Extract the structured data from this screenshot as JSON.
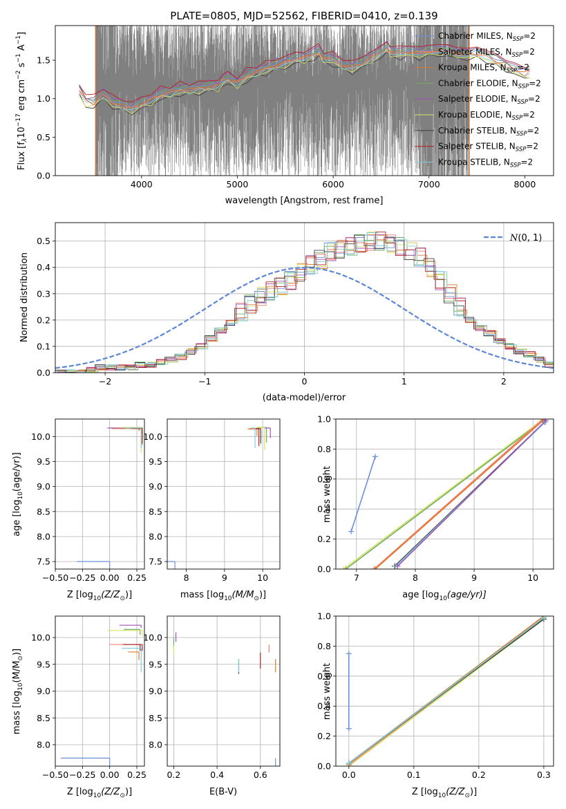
{
  "figure": {
    "title": "PLATE=0805, MJD=52562, FIBERID=0410, z=0.139"
  },
  "colors": {
    "chabrier_miles": "#6a8fdb",
    "salpeter_miles": "#f28070",
    "kroupa_miles": "#e0782e",
    "chabrier_elodie": "#6fae63",
    "salpeter_elodie": "#a050b8",
    "kroupa_elodie": "#d8e060",
    "chabrier_stelib": "#404040",
    "salpeter_stelib": "#b22222",
    "kroupa_stelib": "#7fcfd6",
    "data": "#808080",
    "normal": "#5b86d6"
  },
  "legend_entries": [
    {
      "prefix": "Chabrier MILES, N",
      "sub": "SSP",
      "suffix": "=2",
      "color_key": "chabrier_miles"
    },
    {
      "prefix": "Salpeter MILES, N",
      "sub": "SSP",
      "suffix": "=2",
      "color_key": "salpeter_miles"
    },
    {
      "prefix": "Kroupa MILES, N",
      "sub": "SSP",
      "suffix": "=2",
      "color_key": "kroupa_miles"
    },
    {
      "prefix": "Chabrier ELODIE, N",
      "sub": "SSP",
      "suffix": "=2",
      "color_key": "chabrier_elodie"
    },
    {
      "prefix": "Salpeter ELODIE, N",
      "sub": "SSP",
      "suffix": "=2",
      "color_key": "salpeter_elodie"
    },
    {
      "prefix": "Kroupa ELODIE, N",
      "sub": "SSP",
      "suffix": "=2",
      "color_key": "kroupa_elodie"
    },
    {
      "prefix": "Chabrier STELIB, N",
      "sub": "SSP",
      "suffix": "=2",
      "color_key": "chabrier_stelib"
    },
    {
      "prefix": "Salpeter STELIB, N",
      "sub": "SSP",
      "suffix": "=2",
      "color_key": "salpeter_stelib"
    },
    {
      "prefix": "Kroupa STELIB, N",
      "sub": "SSP",
      "suffix": "=2",
      "color_key": "kroupa_stelib"
    }
  ],
  "chart_data": [
    {
      "id": "spectrum",
      "type": "line",
      "xlabel": "wavelength [Angstrom, rest frame]",
      "ylabel_parts": {
        "a": "Flux [f",
        "b": "λ",
        "c": "10",
        "d": "−17",
        "e": " erg cm",
        "f": "−2",
        "g": " s",
        "h": "−1",
        "i": " A",
        "j": "−1",
        "k": "]"
      },
      "xlim": [
        3100,
        8300
      ],
      "ylim": [
        0,
        1.95
      ],
      "xticks": [
        4000,
        5000,
        6000,
        7000,
        8000
      ],
      "yticks": [
        0.0,
        0.5,
        1.0,
        1.5
      ],
      "xtick_labels": [
        "4000",
        "5000",
        "6000",
        "7000",
        "8000"
      ],
      "ytick_labels": [
        "0.0",
        "0.5",
        "1.0",
        "1.5"
      ],
      "data_range": [
        3520,
        7420
      ],
      "model_range": [
        3350,
        8050
      ],
      "model_points": {
        "x": [
          3350,
          3420,
          3500,
          3600,
          3700,
          3800,
          3900,
          4000,
          4100,
          4200,
          4300,
          4400,
          4500,
          4600,
          4700,
          4800,
          4850,
          4900,
          5000,
          5100,
          5200,
          5300,
          5400,
          5500,
          5600,
          5700,
          5800,
          5850,
          5900,
          6000,
          6100,
          6200,
          6300,
          6400,
          6500,
          6560,
          6600,
          6700,
          6800,
          6900,
          7000,
          7100,
          7200,
          7300,
          7400,
          7500,
          7600,
          7700,
          7800,
          7900,
          8000,
          8050
        ],
        "y": [
          1.12,
          0.98,
          0.95,
          1.08,
          0.95,
          0.92,
          0.88,
          0.94,
          1.0,
          1.06,
          1.1,
          1.12,
          1.13,
          1.14,
          1.16,
          1.18,
          1.24,
          1.26,
          1.22,
          1.3,
          1.36,
          1.4,
          1.44,
          1.48,
          1.52,
          1.55,
          1.58,
          1.62,
          1.54,
          1.52,
          1.44,
          1.42,
          1.46,
          1.55,
          1.6,
          1.66,
          1.62,
          1.6,
          1.62,
          1.6,
          1.62,
          1.64,
          1.62,
          1.6,
          1.58,
          1.6,
          1.56,
          1.5,
          1.44,
          1.38,
          1.34,
          1.36
        ]
      }
    },
    {
      "id": "residuals",
      "type": "histogram",
      "xlabel": "(data-model)/error",
      "ylabel": "Normed distribution",
      "xlim": [
        -2.5,
        2.5
      ],
      "ylim": [
        0,
        0.57
      ],
      "xticks": [
        -2,
        -1,
        0,
        1,
        2
      ],
      "yticks": [
        0.0,
        0.1,
        0.2,
        0.3,
        0.4,
        0.5
      ],
      "xtick_labels": [
        "−2",
        "−1",
        "0",
        "1",
        "2"
      ],
      "ytick_labels": [
        "0.0",
        "0.1",
        "0.2",
        "0.3",
        "0.4",
        "0.5"
      ],
      "legend_label_script": "N",
      "legend_label_rest": "(0, 1)",
      "bin_start": -2.5,
      "bin_width": 0.1,
      "hist_values": [
        0.0,
        0.0,
        0.0,
        0.01,
        0.02,
        0.02,
        0.02,
        0.02,
        0.03,
        0.03,
        0.04,
        0.05,
        0.06,
        0.08,
        0.1,
        0.13,
        0.16,
        0.19,
        0.23,
        0.26,
        0.29,
        0.31,
        0.33,
        0.35,
        0.38,
        0.41,
        0.43,
        0.46,
        0.47,
        0.48,
        0.49,
        0.5,
        0.5,
        0.49,
        0.48,
        0.46,
        0.44,
        0.4,
        0.35,
        0.3,
        0.25,
        0.2,
        0.17,
        0.15,
        0.12,
        0.1,
        0.08,
        0.07,
        0.05,
        0.03
      ]
    },
    {
      "id": "age_vs_Z",
      "type": "scatter",
      "xlabel_parts": {
        "a": "Z [log",
        "b": "10",
        "c": "(Z/Z",
        "d": "⊙",
        "e": ")]"
      },
      "ylabel_parts": {
        "a": "age  [log",
        "b": "10",
        "c": "(age/yr)]"
      },
      "xlim": [
        -0.5,
        0.32
      ],
      "ylim": [
        7.35,
        10.35
      ],
      "xticks": [
        -0.5,
        -0.25,
        0.0,
        0.25
      ],
      "yticks": [
        7.5,
        8.0,
        8.5,
        9.0,
        9.5,
        10.0
      ],
      "xtick_labels": [
        "−0.50",
        "−0.25",
        "0.00",
        "0.25"
      ],
      "ytick_labels": [
        "7.5",
        "8.0",
        "8.5",
        "9.0",
        "9.5",
        "10.0"
      ],
      "points": [
        {
          "x": 0.0,
          "y": 7.5,
          "xerr": 0.3,
          "yerr": 2.6,
          "color_key": "chabrier_miles"
        },
        {
          "x": 0.28,
          "y": 10.18,
          "xerr": 0.1,
          "yerr": 0.04,
          "color_key": "salpeter_miles"
        },
        {
          "x": 0.27,
          "y": 10.16,
          "xerr": 0.25,
          "yerr": 0.05,
          "color_key": "kroupa_miles"
        },
        {
          "x": 0.3,
          "y": 10.18,
          "xerr": 0.05,
          "yerr": 0.35,
          "color_key": "chabrier_elodie"
        },
        {
          "x": 0.28,
          "y": 10.17,
          "xerr": 0.3,
          "yerr": 0.02,
          "color_key": "salpeter_elodie"
        },
        {
          "x": 0.29,
          "y": 10.18,
          "xerr": 0.2,
          "yerr": 0.5,
          "color_key": "kroupa_elodie"
        },
        {
          "x": 0.3,
          "y": 10.16,
          "xerr": 0.1,
          "yerr": 0.1,
          "color_key": "chabrier_stelib"
        },
        {
          "x": 0.3,
          "y": 10.16,
          "xerr": 0.1,
          "yerr": 0.3,
          "color_key": "salpeter_stelib"
        },
        {
          "x": 0.29,
          "y": 10.17,
          "xerr": 0.15,
          "yerr": 0.4,
          "color_key": "kroupa_stelib"
        }
      ]
    },
    {
      "id": "age_vs_mass",
      "type": "scatter",
      "xlabel_parts": {
        "a": "mass [log",
        "b": "10",
        "c": "(M/M",
        "d": "⊙",
        "e": ")]"
      },
      "xlim": [
        7.5,
        10.45
      ],
      "ylim": [
        7.35,
        10.35
      ],
      "xticks": [
        8,
        9,
        10
      ],
      "yticks": [
        7.5,
        8.0,
        8.5,
        9.0,
        9.5,
        10.0
      ],
      "xtick_labels": [
        "8",
        "9",
        "10"
      ],
      "ytick_labels": [
        "7.5",
        "8.0",
        "8.5",
        "9.0",
        "9.5",
        "10.0"
      ],
      "points": [
        {
          "x": 7.7,
          "y": 7.5,
          "xerr": 1.45,
          "yerr": 2.6,
          "color_key": "chabrier_miles"
        },
        {
          "x": 9.9,
          "y": 10.15,
          "xerr": 0.3,
          "yerr": 0.3,
          "color_key": "salpeter_miles"
        },
        {
          "x": 9.85,
          "y": 10.16,
          "xerr": 0.2,
          "yerr": 0.15,
          "color_key": "kroupa_miles"
        },
        {
          "x": 10.1,
          "y": 10.18,
          "xerr": 0.25,
          "yerr": 0.3,
          "color_key": "chabrier_elodie"
        },
        {
          "x": 10.2,
          "y": 10.17,
          "xerr": 0.15,
          "yerr": 0.2,
          "color_key": "salpeter_elodie"
        },
        {
          "x": 10.05,
          "y": 10.18,
          "xerr": 0.2,
          "yerr": 0.45,
          "color_key": "kroupa_elodie"
        },
        {
          "x": 9.95,
          "y": 10.16,
          "xerr": 0.1,
          "yerr": 0.3,
          "color_key": "chabrier_stelib"
        },
        {
          "x": 9.9,
          "y": 10.16,
          "xerr": 0.1,
          "yerr": 0.35,
          "color_key": "salpeter_stelib"
        },
        {
          "x": 9.8,
          "y": 10.17,
          "xerr": 0.1,
          "yerr": 0.4,
          "color_key": "kroupa_stelib"
        }
      ]
    },
    {
      "id": "mass_weight_vs_age",
      "type": "line",
      "xlabel_parts": {
        "a": "age  [log",
        "b": "10",
        "c": "(age/yr)]"
      },
      "ylabel": "mass weight",
      "xlim": [
        6.65,
        10.35
      ],
      "ylim": [
        0,
        1.0
      ],
      "xticks": [
        7,
        8,
        9,
        10
      ],
      "yticks": [
        0.0,
        0.2,
        0.4,
        0.6,
        0.8,
        1.0
      ],
      "xtick_labels": [
        "7",
        "8",
        "9",
        "10"
      ],
      "ytick_labels": [
        "0.0",
        "0.2",
        "0.4",
        "0.6",
        "0.8",
        "1.0"
      ],
      "series": [
        {
          "color_key": "kroupa_elodie",
          "x": [
            6.78,
            10.18
          ],
          "y": [
            0.0,
            1.0
          ]
        },
        {
          "color_key": "chabrier_elodie",
          "x": [
            6.82,
            10.17
          ],
          "y": [
            0.0,
            0.99
          ]
        },
        {
          "color_key": "salpeter_miles",
          "x": [
            7.3,
            10.17
          ],
          "y": [
            0.0,
            1.0
          ]
        },
        {
          "color_key": "kroupa_miles",
          "x": [
            7.32,
            10.17
          ],
          "y": [
            0.0,
            0.99
          ]
        },
        {
          "color_key": "chabrier_stelib",
          "x": [
            7.65,
            10.2
          ],
          "y": [
            0.02,
            0.98
          ]
        },
        {
          "color_key": "kroupa_stelib",
          "x": [
            7.67,
            10.21
          ],
          "y": [
            0.02,
            0.98
          ]
        },
        {
          "color_key": "salpeter_elodie",
          "x": [
            7.7,
            10.22
          ],
          "y": [
            0.02,
            0.99
          ]
        },
        {
          "color_key": "chabrier_miles",
          "x": [
            6.91,
            7.32
          ],
          "y": [
            0.25,
            0.75
          ]
        }
      ]
    },
    {
      "id": "mass_vs_Z",
      "type": "scatter",
      "xlabel_parts": {
        "a": "Z [log",
        "b": "10",
        "c": "(Z/Z",
        "d": "⊙",
        "e": ")]"
      },
      "ylabel_parts": {
        "a": "mass [log",
        "b": "10",
        "c": "(M/M",
        "d": "⊙",
        "e": ")]"
      },
      "xlim": [
        -0.5,
        0.32
      ],
      "ylim": [
        7.6,
        10.4
      ],
      "xticks": [
        -0.5,
        -0.25,
        0.0,
        0.25
      ],
      "yticks": [
        8.0,
        8.5,
        9.0,
        9.5,
        10.0
      ],
      "xtick_labels": [
        "−0.50",
        "−0.25",
        "0.00",
        "0.25"
      ],
      "ytick_labels": [
        "8.0",
        "8.5",
        "9.0",
        "9.5",
        "10.0"
      ],
      "points": [
        {
          "x": 0.0,
          "y": 7.75,
          "xerr": 0.45,
          "yerr": 1.4,
          "color_key": "chabrier_miles"
        },
        {
          "x": 0.28,
          "y": 9.87,
          "xerr": 0.28,
          "yerr": 0.1,
          "color_key": "salpeter_miles"
        },
        {
          "x": 0.27,
          "y": 9.73,
          "xerr": 0.1,
          "yerr": 0.15,
          "color_key": "kroupa_miles"
        },
        {
          "x": 0.28,
          "y": 10.15,
          "xerr": 0.15,
          "yerr": 0.1,
          "color_key": "chabrier_elodie"
        },
        {
          "x": 0.29,
          "y": 10.23,
          "xerr": 0.2,
          "yerr": 0.05,
          "color_key": "salpeter_elodie"
        },
        {
          "x": 0.3,
          "y": 10.13,
          "xerr": 0.32,
          "yerr": 0.1,
          "color_key": "kroupa_elodie"
        },
        {
          "x": 0.28,
          "y": 9.87,
          "xerr": 0.15,
          "yerr": 0.12,
          "color_key": "chabrier_stelib"
        },
        {
          "x": 0.3,
          "y": 9.87,
          "xerr": 0.18,
          "yerr": 0.12,
          "color_key": "salpeter_stelib"
        },
        {
          "x": 0.29,
          "y": 9.8,
          "xerr": 0.18,
          "yerr": 0.45,
          "color_key": "kroupa_stelib"
        }
      ]
    },
    {
      "id": "mass_vs_ebv",
      "type": "scatter",
      "xlabel": "E(B-V)",
      "xlim": [
        0.17,
        0.69
      ],
      "ylim": [
        7.6,
        10.4
      ],
      "xticks": [
        0.2,
        0.4,
        0.6
      ],
      "yticks": [
        8.0,
        8.5,
        9.0,
        9.5,
        10.0
      ],
      "xtick_labels": [
        "0.2",
        "0.4",
        "0.6"
      ],
      "ytick_labels": [
        "8.0",
        "8.5",
        "9.0",
        "9.5",
        "10.0"
      ],
      "points": [
        {
          "x": 0.67,
          "y": 7.75,
          "xerr": 0.0,
          "yerr": 1.4,
          "color_key": "chabrier_miles"
        },
        {
          "x": 0.64,
          "y": 9.87,
          "xerr": 0.0,
          "yerr": 0.15,
          "color_key": "salpeter_miles"
        },
        {
          "x": 0.67,
          "y": 9.6,
          "xerr": 0.0,
          "yerr": 0.25,
          "color_key": "kroupa_miles"
        },
        {
          "x": 0.2,
          "y": 10.0,
          "xerr": 0.0,
          "yerr": 0.2,
          "color_key": "chabrier_elodie"
        },
        {
          "x": 0.21,
          "y": 10.1,
          "xerr": 0.0,
          "yerr": 0.18,
          "color_key": "salpeter_elodie"
        },
        {
          "x": 0.2,
          "y": 9.85,
          "xerr": 0.0,
          "yerr": 0.15,
          "color_key": "kroupa_elodie"
        },
        {
          "x": 0.5,
          "y": 9.6,
          "xerr": 0.0,
          "yerr": 0.28,
          "color_key": "chabrier_stelib"
        },
        {
          "x": 0.6,
          "y": 9.72,
          "xerr": 0.0,
          "yerr": 0.3,
          "color_key": "salpeter_stelib"
        },
        {
          "x": 0.5,
          "y": 9.6,
          "xerr": 0.0,
          "yerr": 0.25,
          "color_key": "kroupa_stelib"
        }
      ]
    },
    {
      "id": "mass_weight_vs_Z",
      "type": "line",
      "xlabel_parts": {
        "a": "Z [log",
        "b": "10",
        "c": "(Z/Z",
        "d": "⊙",
        "e": ")]"
      },
      "ylabel": "mass weight",
      "xlim": [
        -0.02,
        0.315
      ],
      "ylim": [
        0,
        1.0
      ],
      "xticks": [
        0.0,
        0.1,
        0.2,
        0.3
      ],
      "yticks": [
        0.0,
        0.2,
        0.4,
        0.6,
        0.8,
        1.0
      ],
      "xtick_labels": [
        "0.0",
        "0.1",
        "0.2",
        "0.3"
      ],
      "ytick_labels": [
        "0.0",
        "0.2",
        "0.4",
        "0.6",
        "0.8",
        "1.0"
      ],
      "series": [
        {
          "color_key": "kroupa_elodie",
          "x": [
            0.0,
            0.3
          ],
          "y": [
            0.0,
            0.98
          ]
        },
        {
          "color_key": "chabrier_elodie",
          "x": [
            0.0,
            0.3
          ],
          "y": [
            0.01,
            0.99
          ]
        },
        {
          "color_key": "salpeter_elodie",
          "x": [
            0.0,
            0.3
          ],
          "y": [
            0.02,
            0.99
          ]
        },
        {
          "color_key": "salpeter_miles",
          "x": [
            0.0,
            0.3
          ],
          "y": [
            0.01,
            0.99
          ]
        },
        {
          "color_key": "kroupa_miles",
          "x": [
            0.0,
            0.3
          ],
          "y": [
            0.02,
            1.0
          ]
        },
        {
          "color_key": "chabrier_stelib",
          "x": [
            0.0,
            0.3
          ],
          "y": [
            0.02,
            0.98
          ]
        },
        {
          "color_key": "kroupa_stelib",
          "x": [
            0.0,
            0.3
          ],
          "y": [
            0.02,
            0.99
          ]
        },
        {
          "color_key": "chabrier_miles",
          "x": [
            0.0,
            0.0
          ],
          "y": [
            0.25,
            0.75
          ]
        }
      ]
    }
  ]
}
